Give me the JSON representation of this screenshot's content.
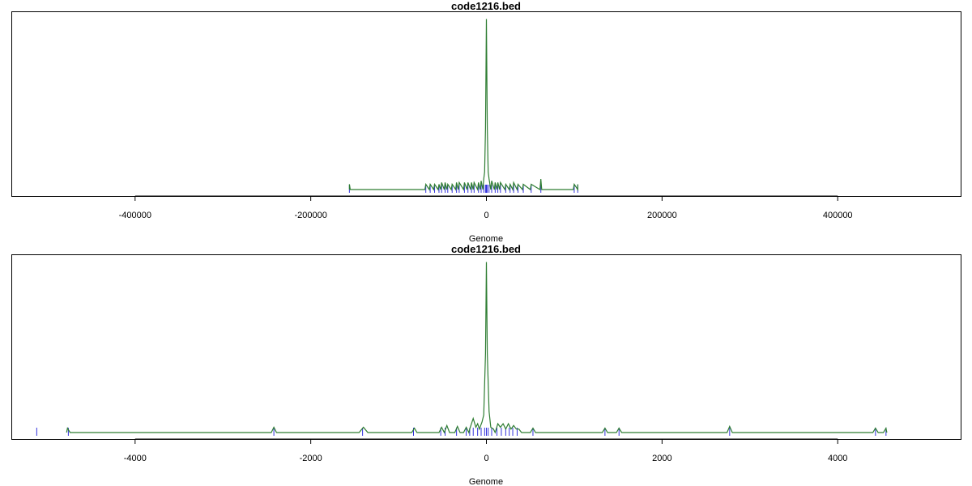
{
  "chart_data": [
    {
      "type": "line",
      "title": "code1216.bed",
      "xlabel": "Genome",
      "ylabel": "",
      "xlim": [
        -540000,
        540000
      ],
      "ylim": [
        0,
        1.0
      ],
      "grid": false,
      "ticks": [
        -400000,
        -200000,
        0,
        200000,
        400000
      ],
      "tick_labels": [
        "-400000",
        "-200000",
        "0",
        "200000",
        "400000"
      ],
      "series": [
        {
          "color": "#2e7d32",
          "kind": "density",
          "x": [
            -156000,
            -156000,
            -155000,
            -70000,
            -69000,
            -65000,
            -64000,
            -60000,
            -59000,
            -55000,
            -54000,
            -52000,
            -51000,
            -48000,
            -47000,
            -45000,
            -44000,
            -40000,
            -39000,
            -35000,
            -34000,
            -32000,
            -31000,
            -26000,
            -25000,
            -22000,
            -21000,
            -18000,
            -17000,
            -15000,
            -14000,
            -10000,
            -9000,
            -7000,
            -6000,
            -4000,
            -3000,
            -2000,
            -1000,
            0,
            1000,
            2000,
            3000,
            5000,
            6000,
            9000,
            10000,
            12000,
            13000,
            15000,
            16000,
            21000,
            22000,
            26000,
            27000,
            30000,
            31000,
            35000,
            36000,
            41000,
            42000,
            50000,
            51000,
            61000,
            62000,
            63000,
            99000,
            100000,
            104000,
            104000
          ],
          "y": [
            0.0,
            0.03,
            0.0,
            0.0,
            0.03,
            0.0,
            0.03,
            0.0,
            0.03,
            0.0,
            0.03,
            0.0,
            0.04,
            0.0,
            0.04,
            0.0,
            0.03,
            0.0,
            0.03,
            0.0,
            0.04,
            0.0,
            0.04,
            0.0,
            0.04,
            0.0,
            0.04,
            0.0,
            0.04,
            0.0,
            0.04,
            0.0,
            0.04,
            0.0,
            0.05,
            0.0,
            0.06,
            0.1,
            0.35,
            0.97,
            0.35,
            0.1,
            0.06,
            0.0,
            0.05,
            0.0,
            0.04,
            0.0,
            0.04,
            0.0,
            0.04,
            0.0,
            0.03,
            0.0,
            0.03,
            0.0,
            0.04,
            0.0,
            0.03,
            0.0,
            0.03,
            0.0,
            0.03,
            0.0,
            0.06,
            0.0,
            0.0,
            0.03,
            0.0,
            0.03
          ]
        }
      ],
      "rugs": [
        {
          "color": "#3333dd",
          "x": [
            -156000,
            -69000,
            -64000,
            -59000,
            -54000,
            -51000,
            -47000,
            -44000,
            -39000,
            -34000,
            -31000,
            -25000,
            -21000,
            -17000,
            -14000,
            -9000,
            -6000,
            -3000,
            -1000,
            0,
            1000,
            3000,
            6000,
            10000,
            13000,
            16000,
            22000,
            27000,
            31000,
            36000,
            42000,
            51000,
            62000,
            100000,
            104000
          ]
        }
      ]
    },
    {
      "type": "line",
      "title": "code1216.bed",
      "xlabel": "Genome",
      "ylabel": "",
      "xlim": [
        -5400,
        5400
      ],
      "ylim": [
        0,
        1.0
      ],
      "grid": false,
      "ticks": [
        -4000,
        -2000,
        0,
        2000,
        4000
      ],
      "tick_labels": [
        "-4000",
        "-2000",
        "0",
        "2000",
        "4000"
      ],
      "series": [
        {
          "color": "#2e7d32",
          "kind": "density",
          "x": [
            -4780,
            -4770,
            -4740,
            -4720,
            -2450,
            -2420,
            -2390,
            -1450,
            -1400,
            -1350,
            -850,
            -820,
            -790,
            -540,
            -510,
            -480,
            -450,
            -420,
            -360,
            -330,
            -300,
            -260,
            -230,
            -200,
            -190,
            -150,
            -120,
            -100,
            -80,
            -50,
            -30,
            -10,
            0,
            10,
            30,
            50,
            80,
            100,
            130,
            160,
            190,
            220,
            250,
            280,
            310,
            340,
            370,
            400,
            500,
            530,
            560,
            1320,
            1350,
            1380,
            1480,
            1510,
            1540,
            2740,
            2770,
            2800,
            4400,
            4430,
            4460,
            4520,
            4550,
            4560
          ],
          "y": [
            0.0,
            0.025,
            0.0,
            0.0,
            0.0,
            0.03,
            0.0,
            0.0,
            0.03,
            0.0,
            0.0,
            0.025,
            0.0,
            0.0,
            0.03,
            0.0,
            0.04,
            0.0,
            0.0,
            0.035,
            0.0,
            0.0,
            0.03,
            0.0,
            0.02,
            0.08,
            0.03,
            0.05,
            0.02,
            0.06,
            0.1,
            0.45,
            0.97,
            0.45,
            0.12,
            0.03,
            0.02,
            0.0,
            0.05,
            0.03,
            0.05,
            0.02,
            0.05,
            0.02,
            0.04,
            0.02,
            0.02,
            0.0,
            0.0,
            0.025,
            0.0,
            0.0,
            0.025,
            0.0,
            0.0,
            0.025,
            0.0,
            0.0,
            0.035,
            0.0,
            0.0,
            0.025,
            0.0,
            0.0,
            0.025,
            0.0
          ]
        }
      ],
      "rugs": [
        {
          "color": "#3333dd",
          "x": [
            -5120,
            -4760,
            -2420,
            -1410,
            -830,
            -520,
            -470,
            -340,
            -230,
            -190,
            -150,
            -100,
            -60,
            -20,
            0,
            20,
            60,
            120,
            170,
            220,
            260,
            300,
            350,
            530,
            1350,
            1510,
            2770,
            4430,
            4550
          ]
        }
      ]
    }
  ]
}
